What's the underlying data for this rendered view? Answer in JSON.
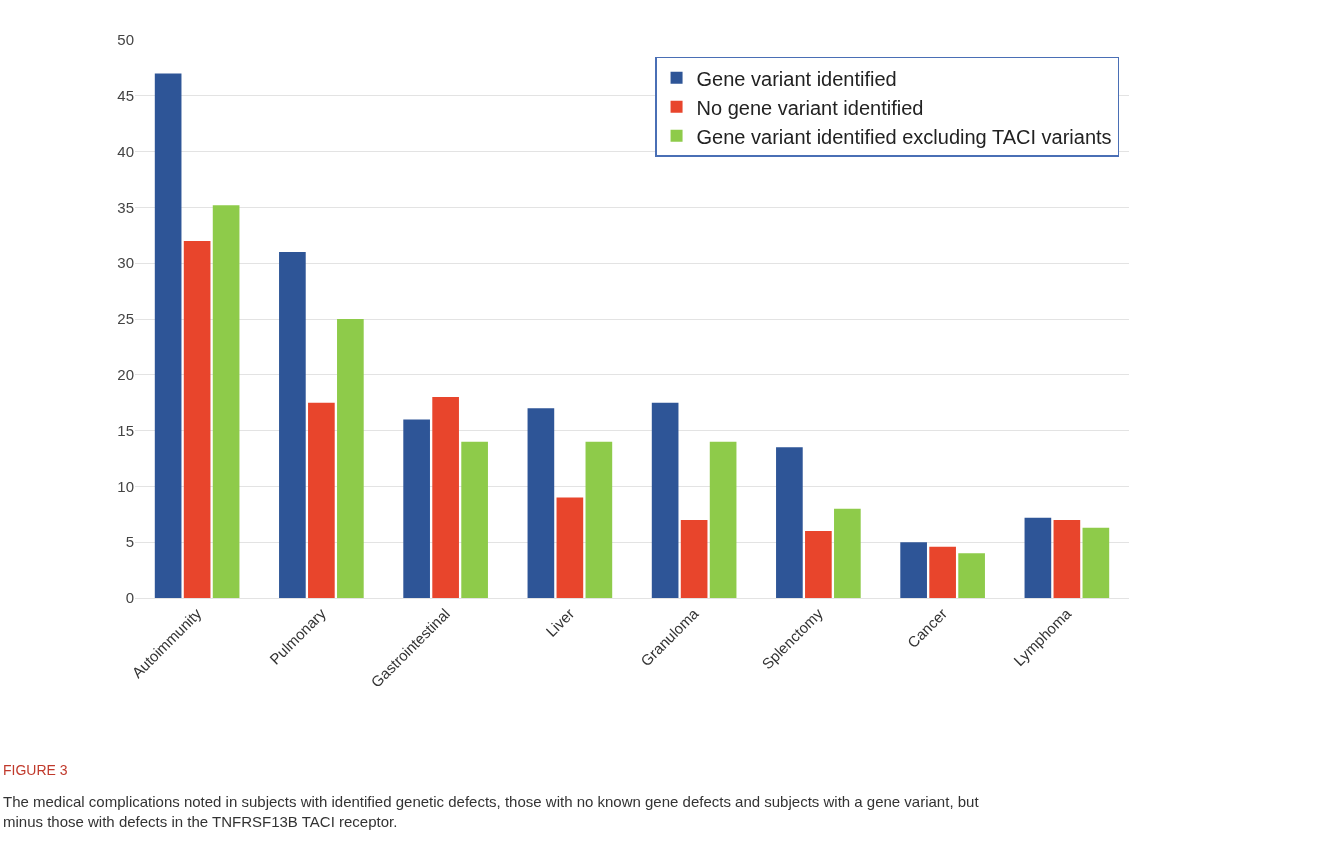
{
  "chart_data": {
    "type": "bar",
    "categories": [
      "Autoimmunity",
      "Pulmonary",
      "Gastrointestinal",
      "Liver",
      "Granuloma",
      "Splenctomy",
      "Cancer",
      "Lymphoma"
    ],
    "series": [
      {
        "name": "Gene variant identified",
        "color": "#2e5597",
        "values": [
          47,
          31,
          16,
          17,
          17.5,
          13.5,
          5,
          7.2
        ]
      },
      {
        "name": "No gene variant identified",
        "color": "#e8452c",
        "values": [
          32,
          17.5,
          18,
          9,
          7,
          6,
          4.6,
          7
        ]
      },
      {
        "name": "Gene variant identified excluding TACI variants",
        "color": "#8ecb4a",
        "values": [
          35.2,
          25,
          14,
          14,
          14,
          8,
          4,
          6.3
        ]
      }
    ],
    "ylim": [
      0,
      50
    ],
    "yticks": [
      0,
      5,
      10,
      15,
      20,
      25,
      30,
      35,
      40,
      45,
      50
    ],
    "grid": "y",
    "legend": "top right",
    "annotations": [
      "FIGURE 3",
      "The medical complications noted in subjects with identified genetic defects, those with no known gene defects and subjects with a gene variant, but minus those with defects in the TNFRSF13B TACI receptor."
    ]
  }
}
